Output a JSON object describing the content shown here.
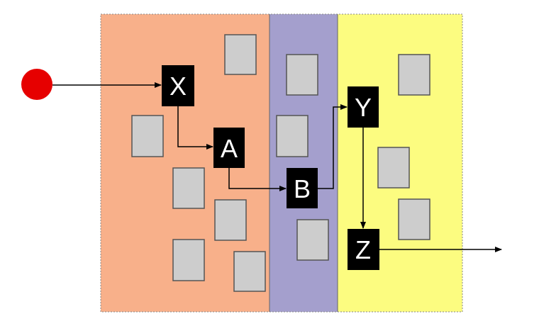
{
  "diagram": {
    "zones": [
      {
        "id": "left",
        "color": "#F8B08A"
      },
      {
        "id": "middle",
        "color": "#A49FCD"
      },
      {
        "id": "right",
        "color": "#FCFC80"
      }
    ],
    "nodes": {
      "X": {
        "label": "X",
        "fill": "#000000"
      },
      "A": {
        "label": "A",
        "fill": "#000000"
      },
      "B": {
        "label": "B",
        "fill": "#000000"
      },
      "Y": {
        "label": "Y",
        "fill": "#000000"
      },
      "Z": {
        "label": "Z",
        "fill": "#000000"
      }
    },
    "box_fill": "#CDCDCD",
    "box_stroke": "#555555",
    "start_point_color": "#E60000",
    "edge_color": "#000000",
    "flow": [
      "start",
      "X",
      "A",
      "B",
      "Y",
      "Z",
      "exit"
    ]
  }
}
